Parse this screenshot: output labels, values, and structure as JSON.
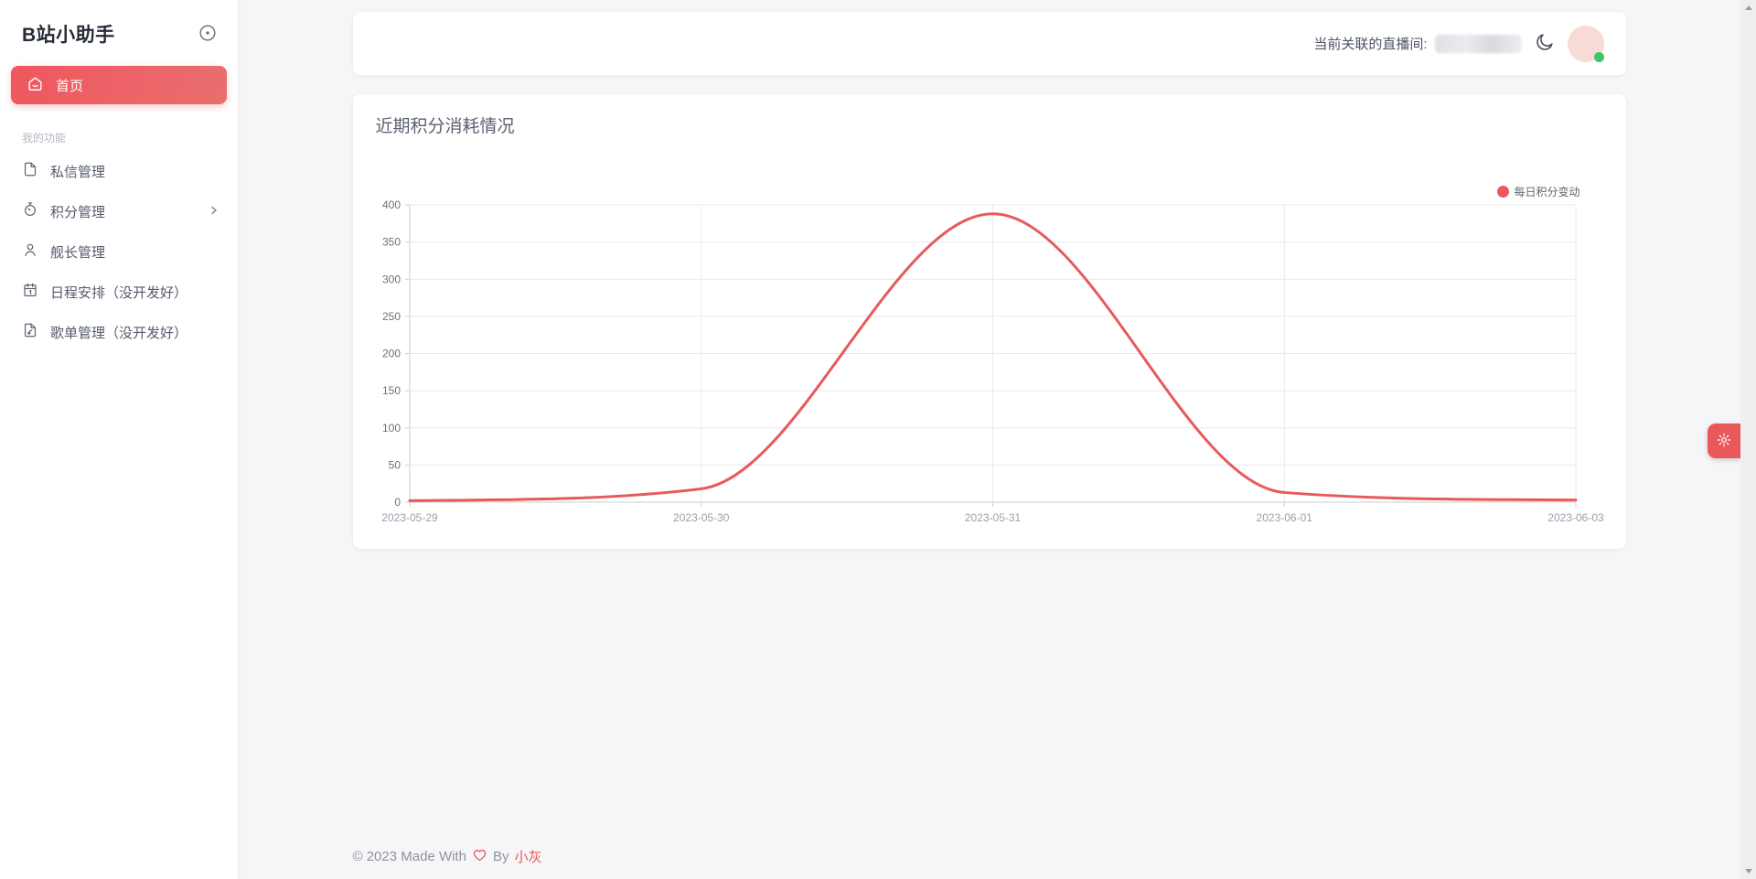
{
  "app": {
    "title": "B站小助手"
  },
  "sidebar": {
    "active_item": {
      "label": "首页",
      "icon": "home-smile-icon"
    },
    "section_label": "我的功能",
    "items": [
      {
        "label": "私信管理",
        "icon": "document-icon",
        "has_submenu": false
      },
      {
        "label": "积分管理",
        "icon": "timer-icon",
        "has_submenu": true
      },
      {
        "label": "舰长管理",
        "icon": "user-icon",
        "has_submenu": false
      },
      {
        "label": "日程安排（没开发好）",
        "icon": "calendar-icon",
        "has_submenu": false
      },
      {
        "label": "歌单管理（没开发好）",
        "icon": "playlist-icon",
        "has_submenu": false
      }
    ]
  },
  "header": {
    "room_label": "当前关联的直播间:",
    "room_id_redacted": true,
    "theme_toggle_icon": "moon-icon",
    "avatar_online_color": "#3ec76a"
  },
  "main": {
    "card_title": "近期积分消耗情况"
  },
  "chart_data": {
    "type": "line",
    "title": "近期积分消耗情况",
    "categories": [
      "2023-05-29",
      "2023-05-30",
      "2023-05-31",
      "2023-06-01",
      "2023-06-03"
    ],
    "series": [
      {
        "name": "每日积分变动",
        "values": [
          2,
          18,
          388,
          13,
          3
        ],
        "color": "#e85a5a",
        "smooth": true
      }
    ],
    "legend": [
      {
        "name": "每日积分变动",
        "color": "#e85a5a"
      }
    ],
    "legend_position": "top-right",
    "xlabel": "",
    "ylabel": "",
    "ylim": [
      0,
      400
    ],
    "y_tick_step": 50,
    "grid": true
  },
  "footer": {
    "prefix": "© 2023 Made With",
    "heart_icon": "heart-outline-icon",
    "middle": "By",
    "author": "小灰"
  },
  "floating_button": {
    "icon": "gear-icon"
  },
  "colors": {
    "accent": "#e85a5a",
    "sidebar_active_gradient_start": "#ee575e",
    "sidebar_active_gradient_end": "#ea6e6e",
    "page_background": "#f6f6f8",
    "online_dot": "#3ec76a"
  }
}
